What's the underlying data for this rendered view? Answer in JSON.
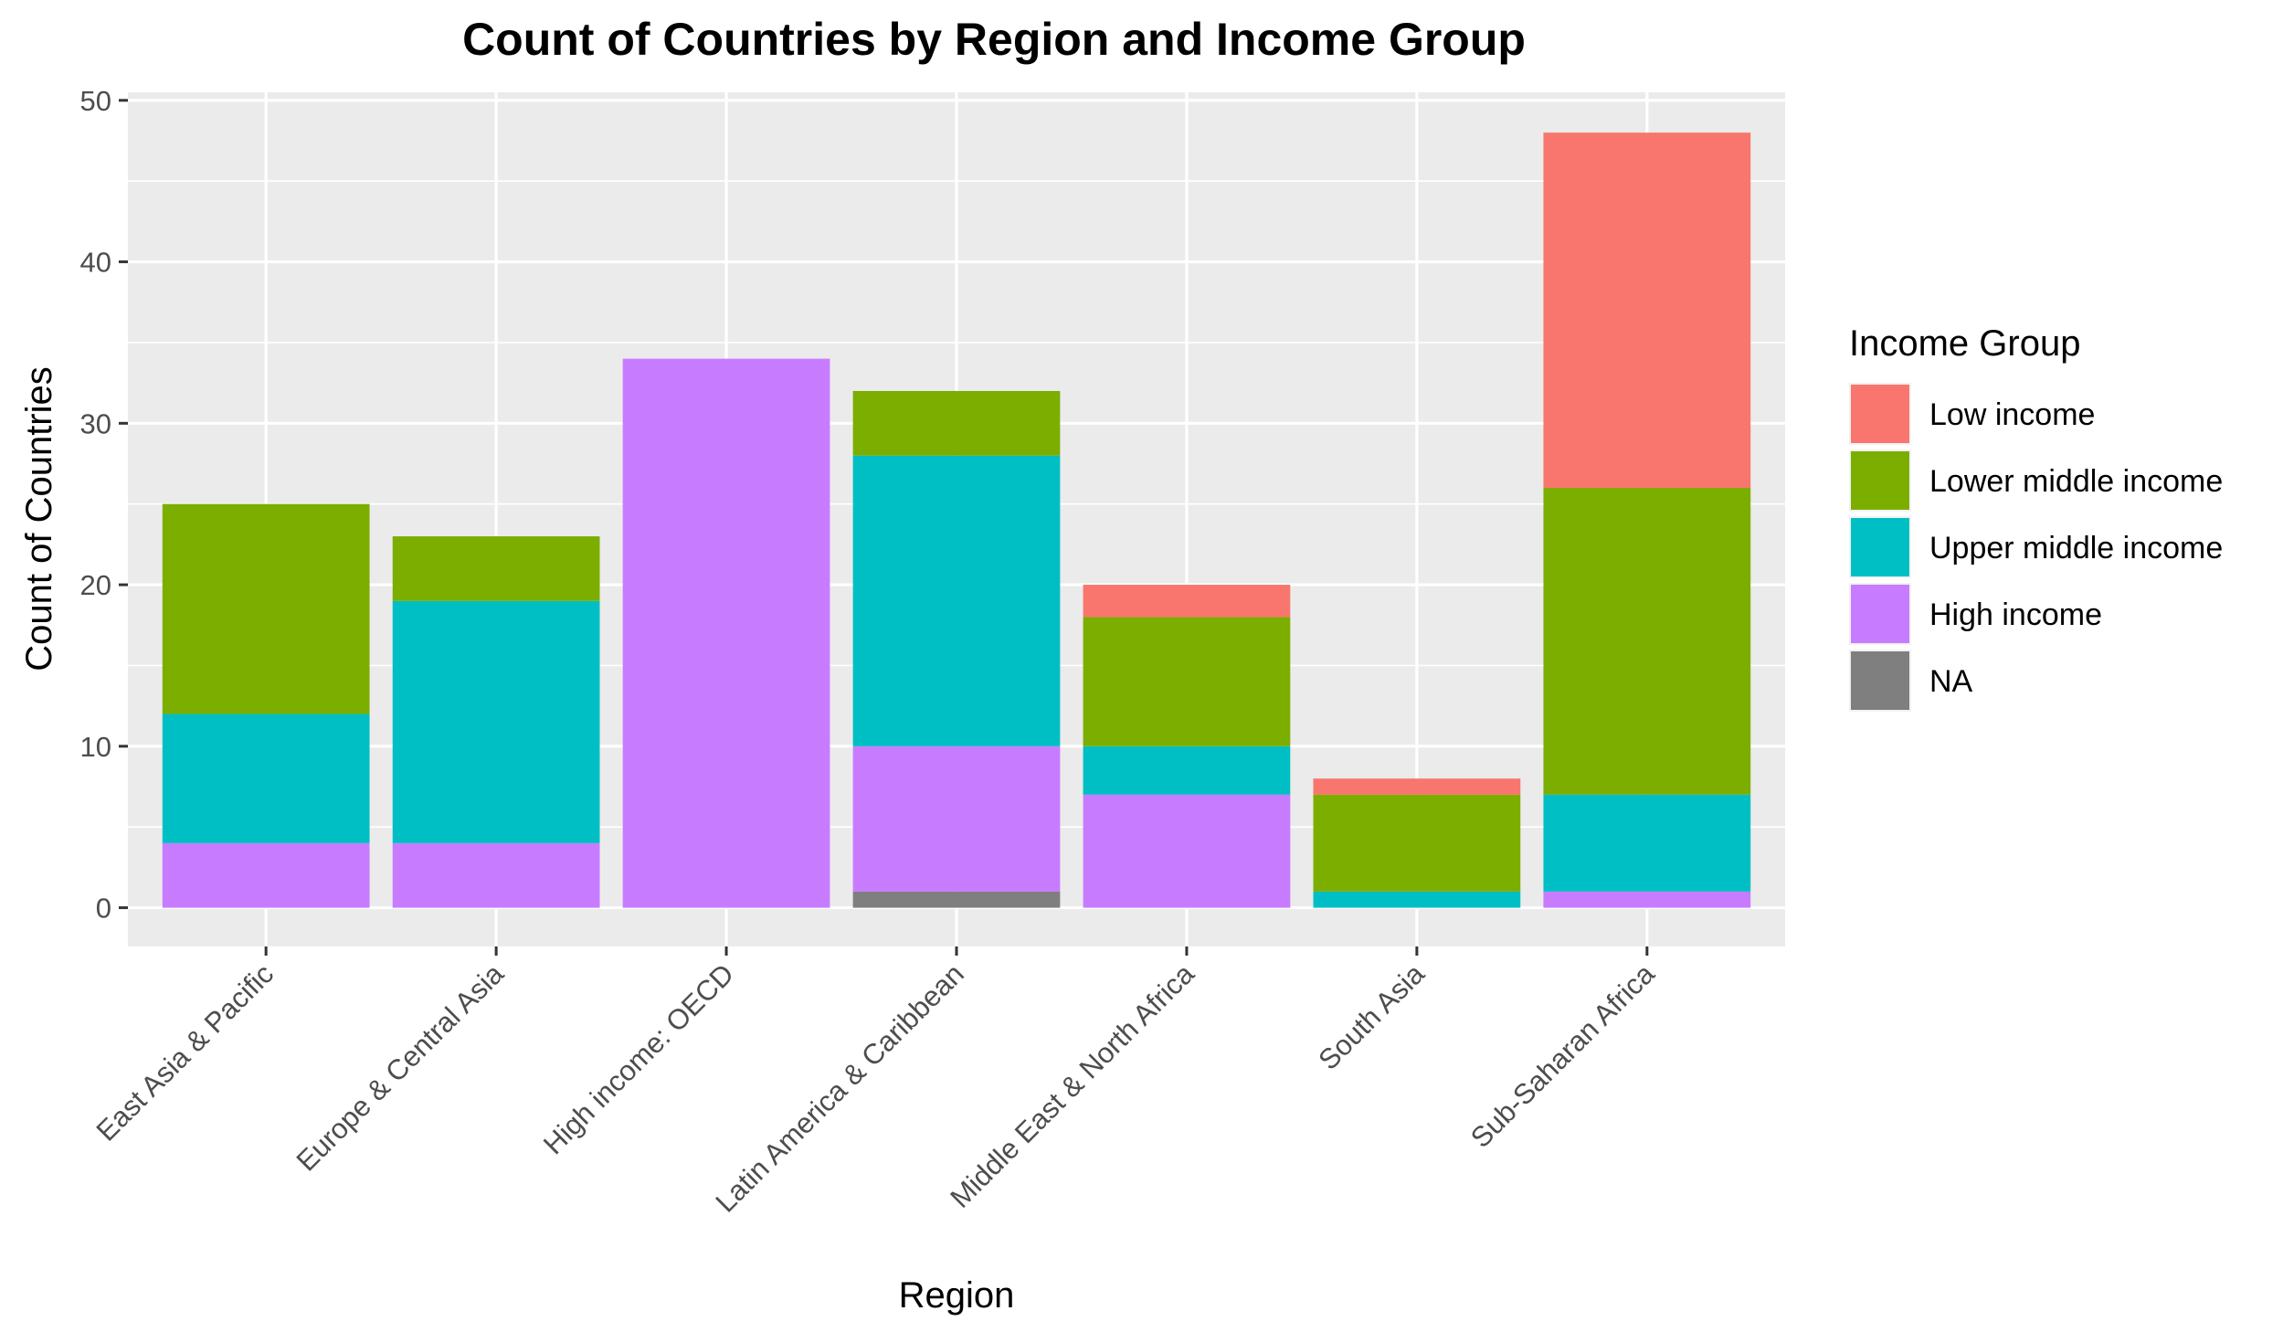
{
  "chart_data": {
    "type": "bar",
    "stacked": true,
    "title": "Count of Countries by Region and Income Group",
    "xlabel": "Region",
    "ylabel": "Count of Countries",
    "ylim": [
      -2.4,
      50.5
    ],
    "yticks": [
      0,
      10,
      20,
      30,
      40,
      50
    ],
    "grid": true,
    "legend_position": "right",
    "legend_title": "Income Group",
    "categories": [
      "East Asia & Pacific",
      "Europe & Central Asia",
      "High income: OECD",
      "Latin America & Caribbean",
      "Middle East & North Africa",
      "South Asia",
      "Sub-Saharan Africa"
    ],
    "series": [
      {
        "name": "Low income",
        "color": "#F8766D",
        "values": [
          0,
          0,
          0,
          0,
          2,
          1,
          22
        ]
      },
      {
        "name": "Lower middle income",
        "color": "#7CAE00",
        "values": [
          13,
          4,
          0,
          4,
          8,
          6,
          19
        ]
      },
      {
        "name": "Upper middle income",
        "color": "#00BFC4",
        "values": [
          8,
          15,
          0,
          18,
          3,
          1,
          6
        ]
      },
      {
        "name": "High income",
        "color": "#C77CFF",
        "values": [
          4,
          4,
          34,
          9,
          7,
          0,
          1
        ]
      },
      {
        "name": "NA",
        "color": "#7F7F7F",
        "values": [
          0,
          0,
          0,
          1,
          0,
          0,
          0
        ]
      }
    ],
    "stack_order_bottom_to_top": [
      "NA",
      "High income",
      "Upper middle income",
      "Lower middle income",
      "Low income"
    ],
    "panel_background": "#EBEBEB",
    "grid_color": "#FFFFFF"
  }
}
